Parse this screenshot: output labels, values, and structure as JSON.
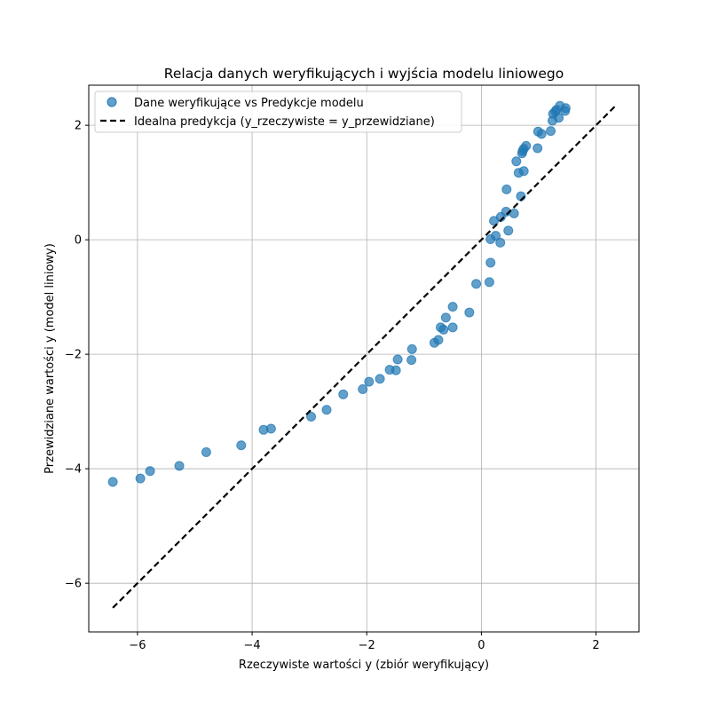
{
  "chart_data": {
    "type": "scatter",
    "title": "Relacja danych weryfikujących i wyjścia modelu liniowego",
    "xlabel": "Rzeczywiste wartości y (zbiór weryfikujący)",
    "ylabel": "Przewidziane wartości y (model liniowy)",
    "xlim": [
      -6.85,
      2.75
    ],
    "ylim": [
      -6.85,
      2.7
    ],
    "xticks": [
      -6,
      -4,
      -2,
      0,
      2
    ],
    "yticks": [
      -6,
      -4,
      -2,
      0,
      2
    ],
    "xtick_labels": [
      "−6",
      "−4",
      "−2",
      "0",
      "2"
    ],
    "ytick_labels": [
      "−6",
      "−4",
      "−2",
      "0",
      "2"
    ],
    "grid": true,
    "legend_position": "top-left",
    "series": [
      {
        "name": "Dane weryfikujące vs Predykcje modelu",
        "kind": "scatter",
        "color": "#1f77b4",
        "points": [
          [
            -6.43,
            -4.23
          ],
          [
            -5.95,
            -4.17
          ],
          [
            -5.78,
            -4.04
          ],
          [
            -5.27,
            -3.95
          ],
          [
            -4.8,
            -3.71
          ],
          [
            -4.19,
            -3.59
          ],
          [
            -3.8,
            -3.32
          ],
          [
            -3.67,
            -3.3
          ],
          [
            -2.97,
            -3.09
          ],
          [
            -2.7,
            -2.97
          ],
          [
            -2.41,
            -2.7
          ],
          [
            -2.07,
            -2.61
          ],
          [
            -1.96,
            -2.48
          ],
          [
            -1.77,
            -2.43
          ],
          [
            -1.6,
            -2.27
          ],
          [
            -1.49,
            -2.28
          ],
          [
            -1.46,
            -2.09
          ],
          [
            -1.22,
            -2.1
          ],
          [
            -1.21,
            -1.91
          ],
          [
            -0.82,
            -1.8
          ],
          [
            -0.75,
            -1.75
          ],
          [
            -0.71,
            -1.53
          ],
          [
            -0.66,
            -1.57
          ],
          [
            -0.62,
            -1.36
          ],
          [
            -0.5,
            -1.17
          ],
          [
            -0.5,
            -1.53
          ],
          [
            -0.21,
            -1.27
          ],
          [
            -0.09,
            -0.77
          ],
          [
            0.14,
            -0.74
          ],
          [
            0.16,
            -0.4
          ],
          [
            0.16,
            0.01
          ],
          [
            0.22,
            0.33
          ],
          [
            0.25,
            0.07
          ],
          [
            0.33,
            -0.05
          ],
          [
            0.34,
            0.4
          ],
          [
            0.43,
            0.49
          ],
          [
            0.44,
            0.88
          ],
          [
            0.47,
            0.16
          ],
          [
            0.57,
            0.46
          ],
          [
            0.61,
            1.37
          ],
          [
            0.65,
            1.17
          ],
          [
            0.69,
            0.76
          ],
          [
            0.71,
            1.51
          ],
          [
            0.72,
            1.55
          ],
          [
            0.74,
            1.2
          ],
          [
            0.74,
            1.59
          ],
          [
            0.78,
            1.64
          ],
          [
            0.98,
            1.6
          ],
          [
            0.99,
            1.89
          ],
          [
            1.05,
            1.85
          ],
          [
            1.21,
            1.9
          ],
          [
            1.24,
            2.08
          ],
          [
            1.25,
            2.2
          ],
          [
            1.29,
            2.24
          ],
          [
            1.31,
            2.27
          ],
          [
            1.35,
            2.13
          ],
          [
            1.37,
            2.34
          ],
          [
            1.46,
            2.25
          ],
          [
            1.47,
            2.3
          ]
        ]
      },
      {
        "name": "Idealna predykcja (y_rzeczywiste = y_przewidziane)",
        "kind": "line",
        "style": "dashed",
        "color": "#000000",
        "x": [
          -6.43,
          2.34
        ],
        "y": [
          -6.43,
          2.34
        ]
      }
    ]
  }
}
